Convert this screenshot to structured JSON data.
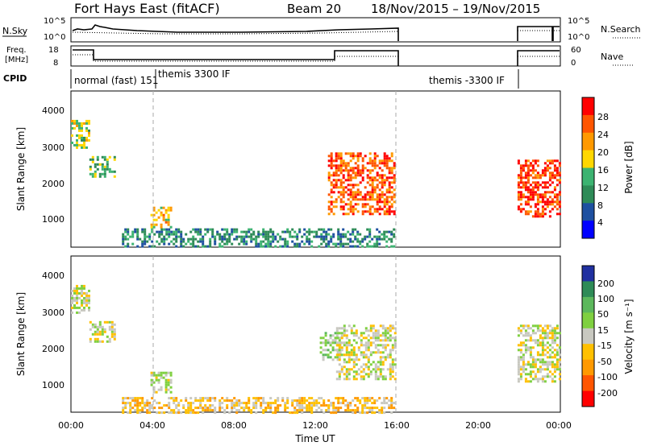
{
  "header": {
    "station": "Fort Hays East (fitACF)",
    "beam": "Beam 20",
    "dates": "18/Nov/2015 – 19/Nov/2015"
  },
  "strip_labels": {
    "nsky": "N.Sky",
    "nsky_tick_hi": "10^5",
    "nsky_tick_lo": "10^0",
    "freq_1": "Freq.",
    "freq_2": "[MHz]",
    "freq_tick_hi": "18",
    "freq_tick_lo": "8",
    "cpid": "CPID",
    "nsearch": "N.Search",
    "nsearch_tick_hi": "10^5",
    "nsearch_tick_lo": "10^0",
    "nave": "Nave",
    "nave_tick_hi": "60",
    "nave_tick_lo": "0"
  },
  "cpid_labels": {
    "mode1": "normal (fast) 151",
    "mode2": "themis 3300 IF",
    "mode3": "themis -3300 IF"
  },
  "axes": {
    "xlabel": "Time UT",
    "ylabel_power": "Slant Range [km]",
    "ylabel_velocity": "Slant Range [km]",
    "x_ticks": [
      "00:00",
      "04:00",
      "08:00",
      "12:00",
      "16:00",
      "20:00",
      "00:00"
    ],
    "y_ticks": [
      "1000",
      "2000",
      "3000",
      "4000"
    ]
  },
  "colorbars": {
    "power": {
      "label": "Power [dB]",
      "ticks": [
        "4",
        "8",
        "12",
        "16",
        "20",
        "24",
        "28"
      ],
      "colors": [
        "#0000ff",
        "#1e50a0",
        "#2e8b57",
        "#3cb371",
        "#ffd700",
        "#ff9900",
        "#ff5500",
        "#ff0000"
      ]
    },
    "velocity": {
      "label": "Velocity [m s⁻¹]",
      "ticks": [
        "200",
        "100",
        "50",
        "15",
        "-15",
        "-50",
        "-100",
        "-200"
      ],
      "colors": [
        "#2030a0",
        "#2e8b57",
        "#5cb85c",
        "#7fd040",
        "#c8c8c0",
        "#ffc000",
        "#ff9900",
        "#ff5500",
        "#ff0000"
      ]
    }
  },
  "chart_data": [
    {
      "type": "heatmap",
      "panel": "power",
      "xlabel": "Time UT",
      "ylabel": "Slant Range [km]",
      "x_range_hours": [
        0,
        24
      ],
      "ylim_km": [
        180,
        4500
      ],
      "colorbar_label": "Power [dB]",
      "colorbar_range": [
        0,
        32
      ],
      "echo_regions": [
        {
          "t0": 0.0,
          "t1": 0.9,
          "r0": 2900,
          "r1": 3700,
          "value": 16
        },
        {
          "t0": 0.9,
          "t1": 2.2,
          "r0": 2100,
          "r1": 2700,
          "value": 14
        },
        {
          "t0": 3.9,
          "t1": 4.9,
          "r0": 700,
          "r1": 1300,
          "value": 20
        },
        {
          "t0": 2.5,
          "t1": 15.9,
          "r0": 180,
          "r1": 700,
          "value": 10
        },
        {
          "t0": 12.6,
          "t1": 15.9,
          "r0": 1100,
          "r1": 2800,
          "value": 26
        },
        {
          "t0": 21.9,
          "t1": 24.0,
          "r0": 1000,
          "r1": 2600,
          "value": 28
        }
      ]
    },
    {
      "type": "heatmap",
      "panel": "velocity",
      "xlabel": "Time UT",
      "ylabel": "Slant Range [km]",
      "x_range_hours": [
        0,
        24
      ],
      "ylim_km": [
        180,
        4500
      ],
      "colorbar_label": "Velocity [m s⁻¹]",
      "colorbar_range": [
        -200,
        200
      ],
      "echo_regions": [
        {
          "t0": 0.0,
          "t1": 0.9,
          "r0": 2900,
          "r1": 3700,
          "value": 0
        },
        {
          "t0": 0.9,
          "t1": 2.2,
          "r0": 2100,
          "r1": 2700,
          "value": 0
        },
        {
          "t0": 3.9,
          "t1": 4.9,
          "r0": 700,
          "r1": 1300,
          "value": 0
        },
        {
          "t0": 2.5,
          "t1": 15.9,
          "r0": 180,
          "r1": 600,
          "value": -40
        },
        {
          "t0": 12.2,
          "t1": 13.2,
          "r0": 1600,
          "r1": 2400,
          "value": 40
        },
        {
          "t0": 13.0,
          "t1": 15.9,
          "r0": 1100,
          "r1": 2600,
          "value": 0
        },
        {
          "t0": 21.9,
          "t1": 24.0,
          "r0": 1000,
          "r1": 2600,
          "value": 0
        }
      ]
    }
  ]
}
